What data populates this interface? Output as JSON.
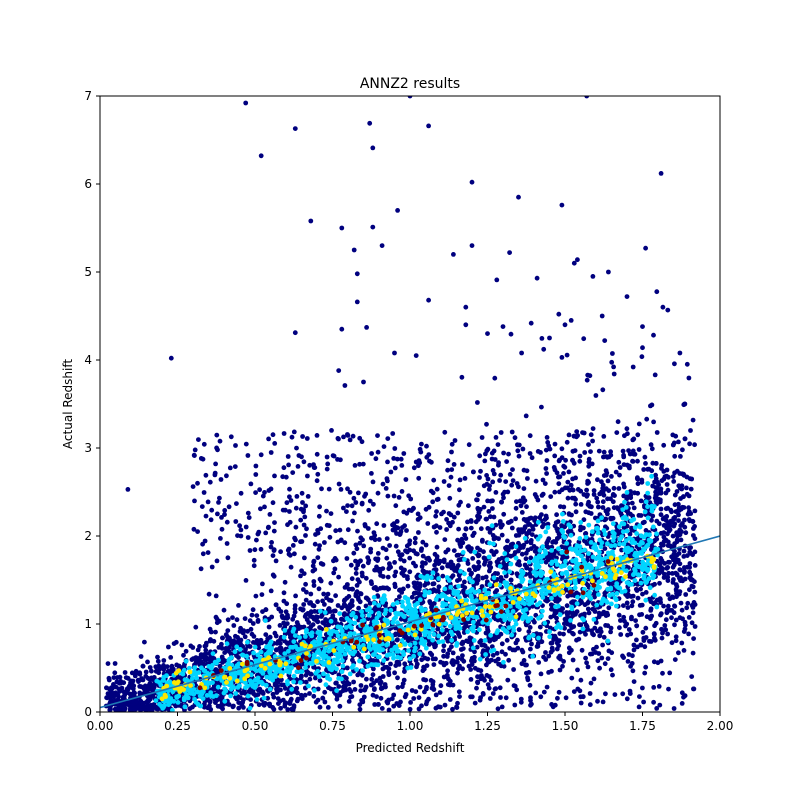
{
  "chart_data": {
    "type": "scatter",
    "title": "ANNZ2 results",
    "xlabel": "Predicted Redshift",
    "ylabel": "Actual Redshift",
    "xlim": [
      0,
      2
    ],
    "ylim": [
      0,
      7
    ],
    "xticks": [
      "0.00",
      "0.25",
      "0.50",
      "0.75",
      "1.00",
      "1.25",
      "1.50",
      "1.75",
      "2.00"
    ],
    "yticks": [
      "0",
      "1",
      "2",
      "3",
      "4",
      "5",
      "6",
      "7"
    ],
    "grid": false,
    "colors": {
      "low_density": "#00007f",
      "mid_density": "#00d4ff",
      "high_density": "#ffe600",
      "peak_density": "#7f0000",
      "reference_line": "#1f77b4"
    },
    "reference_line": {
      "x": [
        0,
        2
      ],
      "y": [
        0.05,
        2.0
      ]
    },
    "outliers": {
      "x": [
        0.47,
        0.63,
        0.87,
        0.52,
        0.88,
        0.68,
        1.06,
        1.0,
        1.2,
        1.35,
        1.49,
        1.54,
        1.57,
        1.81,
        0.78,
        0.88,
        0.91,
        0.82,
        0.96,
        1.14,
        1.2,
        1.28,
        1.41,
        1.48,
        1.53,
        1.59,
        1.64,
        1.7,
        1.76,
        0.83,
        0.86,
        0.78,
        1.06,
        1.18,
        1.25,
        1.3,
        1.45,
        1.52,
        1.62,
        1.75,
        0.63,
        0.95,
        1.02,
        1.36,
        1.49,
        1.72,
        0.77,
        0.79,
        0.85,
        1.75,
        0.23,
        0.09,
        1.18,
        1.5,
        0.83
      ],
      "y": [
        6.92,
        6.63,
        6.69,
        6.32,
        6.41,
        5.58,
        6.66,
        7.0,
        6.02,
        5.85,
        5.76,
        5.14,
        7.0,
        6.12,
        5.5,
        5.51,
        5.3,
        5.25,
        5.7,
        5.2,
        5.3,
        4.91,
        4.93,
        4.52,
        5.1,
        4.95,
        5.0,
        4.72,
        5.27,
        4.66,
        4.37,
        4.35,
        4.68,
        4.6,
        4.3,
        4.38,
        4.25,
        4.45,
        4.5,
        4.38,
        4.31,
        4.08,
        4.05,
        4.08,
        4.03,
        3.92,
        3.88,
        3.71,
        3.75,
        4.14,
        4.02,
        2.53,
        4.4,
        4.4,
        4.98
      ]
    }
  }
}
